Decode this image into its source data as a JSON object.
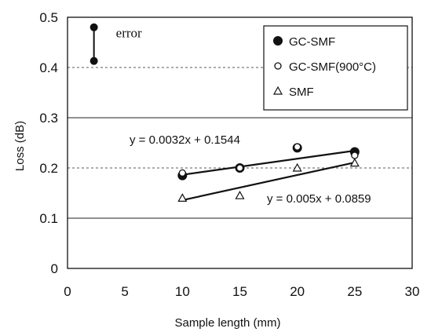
{
  "chart_data": {
    "type": "scatter",
    "xlabel": "Sample length (mm)",
    "ylabel": "Loss (dB)",
    "xlim": [
      0,
      30
    ],
    "ylim": [
      0,
      0.5
    ],
    "x_ticks": [
      "0",
      "5",
      "10",
      "15",
      "20",
      "25",
      "30"
    ],
    "y_ticks": [
      "0",
      "0.1",
      "0.2",
      "0.3",
      "0.4",
      "0.5"
    ],
    "grid": "horizontal",
    "legend_position": "top-right",
    "series": [
      {
        "name": "GC-SMF",
        "marker": "filled-circle",
        "points": [
          [
            10,
            0.185
          ],
          [
            15,
            0.2
          ],
          [
            20,
            0.24
          ],
          [
            25,
            0.232
          ]
        ]
      },
      {
        "name": "GC-SMF(900°C)",
        "marker": "open-circle",
        "points": [
          [
            10,
            0.19
          ],
          [
            15,
            0.2
          ],
          [
            20,
            0.242
          ],
          [
            25,
            0.225
          ]
        ]
      },
      {
        "name": "SMF",
        "marker": "open-triangle",
        "points": [
          [
            10,
            0.14
          ],
          [
            15,
            0.145
          ],
          [
            20,
            0.2
          ],
          [
            25,
            0.21
          ]
        ]
      }
    ],
    "trendlines": [
      {
        "label": "y = 0.0032x + 0.1544",
        "slope": 0.0032,
        "intercept": 0.1544,
        "x_range": [
          10,
          25
        ]
      },
      {
        "label": "y = 0.005x + 0.0859",
        "slope": 0.005,
        "intercept": 0.0859,
        "x_range": [
          10,
          25
        ]
      }
    ],
    "error_annotation": {
      "label": "error",
      "x": 2.3,
      "y_low": 0.413,
      "y_high": 0.48
    }
  }
}
